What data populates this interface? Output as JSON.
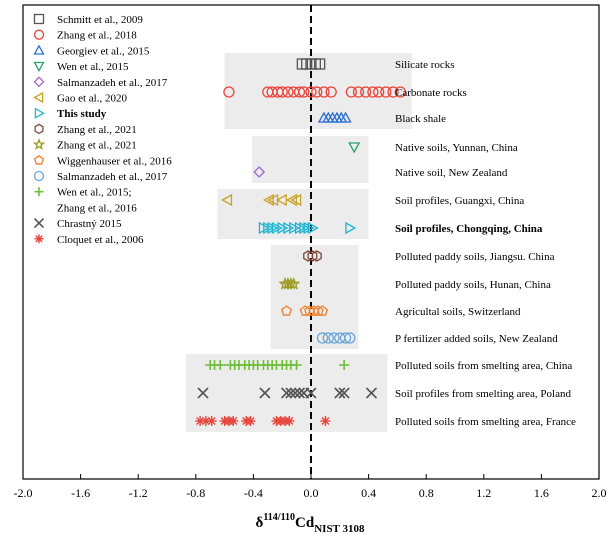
{
  "chart_data": {
    "type": "scatter",
    "title": "",
    "xlabel": {
      "main": "δ",
      "sup": "114/110",
      "element": "Cd",
      "sub": "NIST 3108"
    },
    "ylabel": "",
    "xlim": [
      -2.0,
      2.0
    ],
    "xticks": [
      "-2.0",
      "-1.6",
      "-1.2",
      "-0.8",
      "-0.4",
      "0.0",
      "0.4",
      "0.8",
      "1.2",
      "1.6",
      "2.0"
    ],
    "xtick_values": [
      -2.0,
      -1.6,
      -1.2,
      -0.8,
      -0.4,
      0.0,
      0.4,
      0.8,
      1.2,
      1.6,
      2.0
    ],
    "reference_line": {
      "x": 0.0,
      "style": "dashed"
    },
    "legend_position": "top-left",
    "legend": [
      {
        "label": "Schmitt et al., 2009",
        "marker": "square",
        "color": "#555555",
        "bold": false
      },
      {
        "label": "Zhang et al., 2018",
        "marker": "circle",
        "color": "#e8443a",
        "bold": false
      },
      {
        "label": "Georgiev et al., 2015",
        "marker": "triangle-up",
        "color": "#2a6fd6",
        "bold": false
      },
      {
        "label": "Wen et al., 2015",
        "marker": "triangle-down",
        "color": "#2ea26b",
        "bold": false
      },
      {
        "label": "Salmanzadeh et al., 2017",
        "marker": "diamond",
        "color": "#a466c9",
        "bold": false
      },
      {
        "label": "Gao et al., 2020",
        "marker": "triangle-left",
        "color": "#c9a227",
        "bold": false
      },
      {
        "label": "This study",
        "marker": "triangle-right",
        "color": "#1fb4d2",
        "bold": true
      },
      {
        "label": "Zhang et al., 2021",
        "marker": "hexagon",
        "color": "#7a4a3a",
        "bold": false
      },
      {
        "label": "Zhang et al., 2021",
        "marker": "star",
        "color": "#9a9a1f",
        "bold": false
      },
      {
        "label": "Wiggenhauser et al., 2016",
        "marker": "pentagon",
        "color": "#f07f2a",
        "bold": false
      },
      {
        "label": "Salmanzadeh et al., 2017",
        "marker": "circle",
        "color": "#6aa4d8",
        "bold": false
      },
      {
        "label": "Wen et al., 2015;",
        "marker": "plus",
        "color": "#6fbf3a",
        "bold": false
      },
      {
        "label": "Zhang et al., 2016",
        "marker": "none",
        "color": "",
        "bold": false
      },
      {
        "label": "Chrastný 2015",
        "marker": "x",
        "color": "#555555",
        "bold": false
      },
      {
        "label": "Cloquet et al., 2006",
        "marker": "asterisk",
        "color": "#e8443a",
        "bold": false
      }
    ],
    "series": [
      {
        "name": "Silicate rocks",
        "legend_ref": 0,
        "values": [
          -0.06,
          -0.03,
          0.0,
          0.03,
          0.06
        ]
      },
      {
        "name": "Carbonate rocks",
        "legend_ref": 1,
        "values": [
          -0.57,
          -0.3,
          -0.27,
          -0.23,
          -0.2,
          -0.16,
          -0.12,
          -0.08,
          -0.05,
          0.0,
          0.04,
          0.09,
          0.14,
          0.28,
          0.33,
          0.38,
          0.43,
          0.47,
          0.52,
          0.57,
          0.62
        ]
      },
      {
        "name": "Black shale",
        "legend_ref": 2,
        "values": [
          0.09,
          0.12,
          0.15,
          0.18,
          0.21,
          0.24
        ]
      },
      {
        "name": "Native soils, Yunnan, China",
        "legend_ref": 3,
        "values": [
          0.3
        ]
      },
      {
        "name": "Native soil, New Zealand",
        "legend_ref": 4,
        "values": [
          -0.36
        ]
      },
      {
        "name": "Soil profiles, Guangxi, China",
        "legend_ref": 5,
        "values": [
          -0.58,
          -0.29,
          -0.26,
          -0.2,
          -0.13,
          -0.1
        ]
      },
      {
        "name": "Soil profiles, Chongqing, China",
        "legend_ref": 6,
        "bold": true,
        "values": [
          -0.33,
          -0.3,
          -0.27,
          -0.24,
          -0.2,
          -0.16,
          -0.12,
          -0.08,
          -0.05,
          -0.02,
          0.01,
          0.27
        ]
      },
      {
        "name": "Polluted paddy soils, Jiangsu. China",
        "legend_ref": 7,
        "values": [
          -0.02,
          0.01,
          0.04
        ]
      },
      {
        "name": "Polluted paddy soils, Hunan, China",
        "legend_ref": 8,
        "values": [
          -0.18,
          -0.16,
          -0.14,
          -0.12
        ]
      },
      {
        "name": "Agricultal soils, Switzerland",
        "legend_ref": 9,
        "values": [
          -0.17,
          -0.04,
          -0.01,
          0.02,
          0.05,
          0.08
        ]
      },
      {
        "name": "P fertilizer added soils, New Zealand",
        "legend_ref": 10,
        "values": [
          0.08,
          0.12,
          0.16,
          0.2,
          0.24,
          0.27
        ]
      },
      {
        "name": "Polluted soils from smelting area, China",
        "legend_ref": 11,
        "values": [
          -0.7,
          -0.67,
          -0.63,
          -0.56,
          -0.53,
          -0.5,
          -0.46,
          -0.43,
          -0.4,
          -0.37,
          -0.33,
          -0.3,
          -0.27,
          -0.24,
          -0.2,
          -0.17,
          -0.14,
          -0.1,
          0.23
        ]
      },
      {
        "name": "Soil profiles from smelting area, Poland",
        "legend_ref": 13,
        "values": [
          -0.75,
          -0.32,
          -0.17,
          -0.14,
          -0.11,
          -0.08,
          -0.05,
          0.0,
          0.2,
          0.23,
          0.42
        ]
      },
      {
        "name": "Polluted soils from smelting area, France",
        "legend_ref": 14,
        "values": [
          -0.77,
          -0.73,
          -0.69,
          -0.6,
          -0.57,
          -0.54,
          -0.45,
          -0.42,
          -0.24,
          -0.21,
          -0.18,
          -0.15,
          0.1
        ]
      }
    ]
  }
}
